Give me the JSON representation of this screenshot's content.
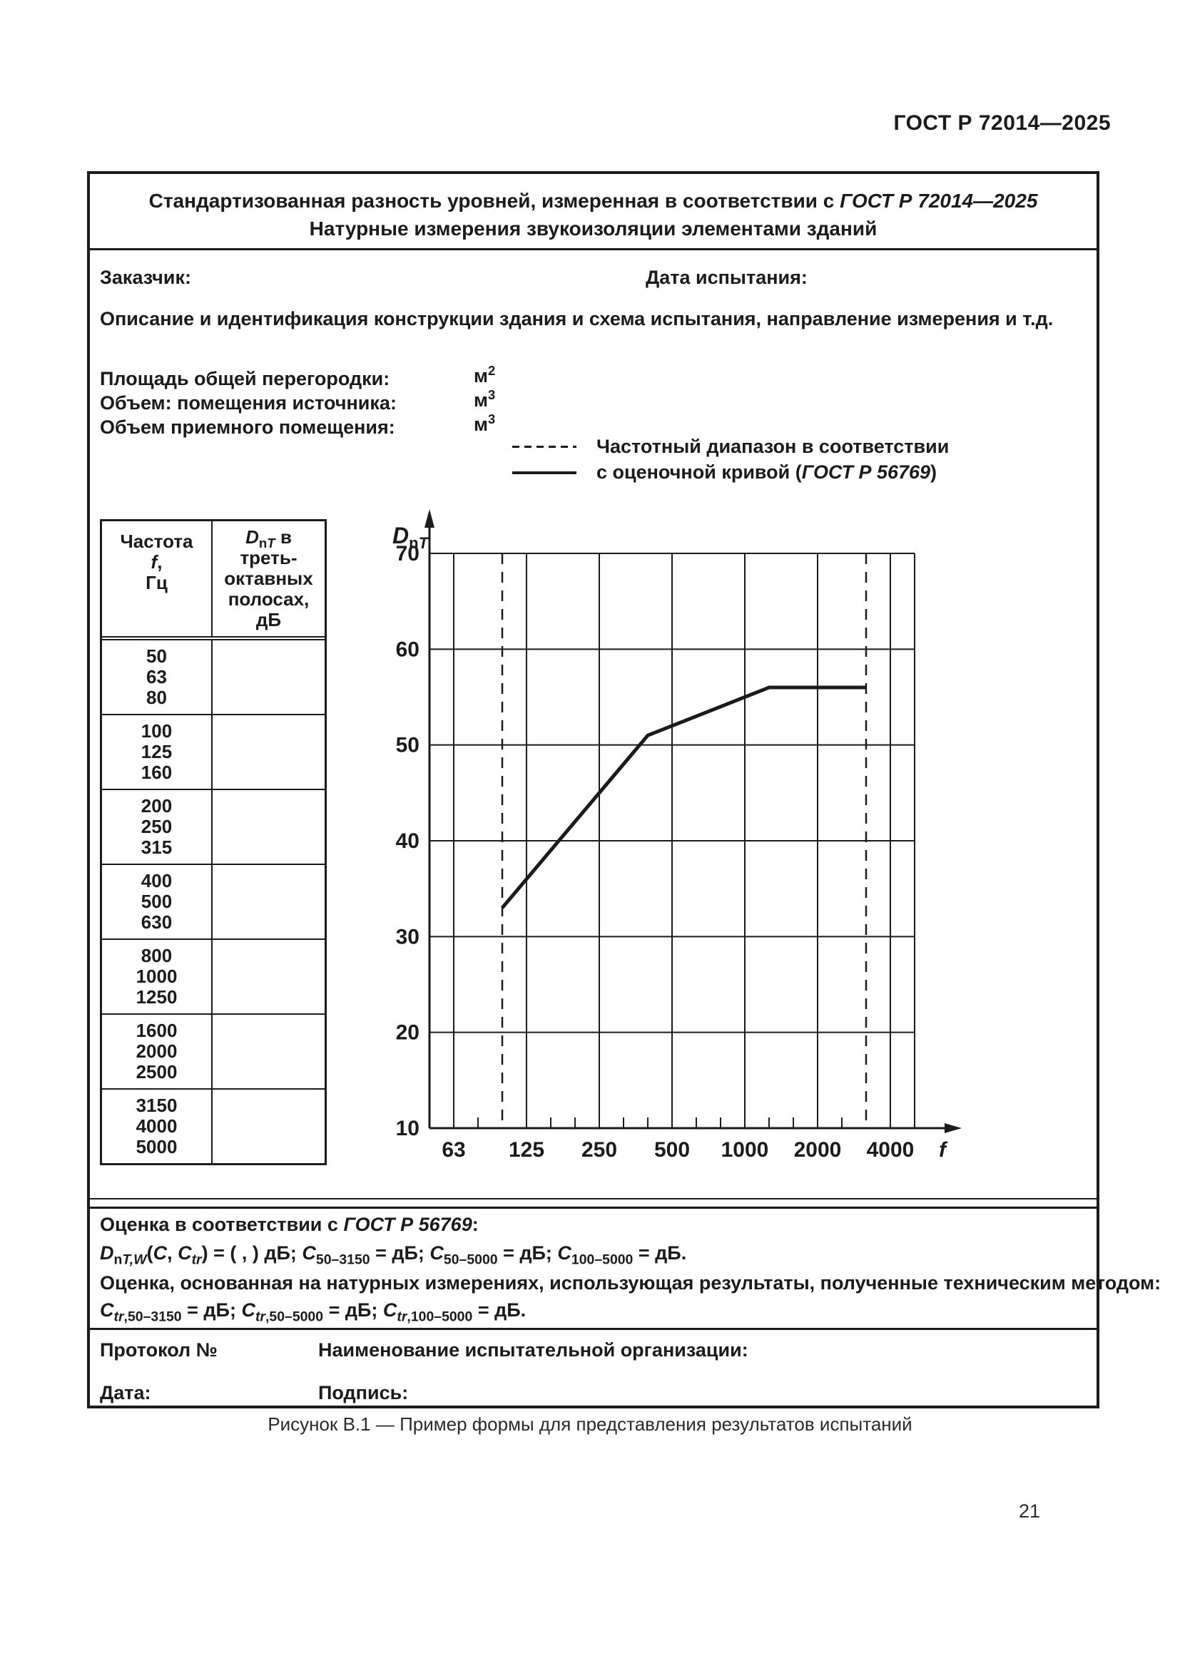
{
  "page": {
    "header": "ГОСТ Р 72014—2025",
    "caption": "Рисунок В.1 — Пример формы для представления результатов испытаний",
    "page_number": "21"
  },
  "form": {
    "title": {
      "line1": [
        {
          "t": "Стандартизованная разность уровней, измеренная в соответствии с "
        },
        {
          "t": "ГОСТ Р 72014—2025",
          "i": 1
        }
      ],
      "line2": "Натурные измерения звукоизоляции элементами зданий"
    },
    "fields": {
      "customer": "Заказчик:",
      "test_date": "Дата испытания:",
      "description": "Описание и идентификация конструкции здания и схема испытания, направление измерения и т.д.",
      "area_label": "Площадь общей перегородки:",
      "area_unit": [
        {
          "t": "м"
        },
        {
          "t": "2",
          "sup": 1
        }
      ],
      "volume_source_label": "Объем: помещения источника:",
      "volume_source_unit": [
        {
          "t": "м"
        },
        {
          "t": "3",
          "sup": 1
        }
      ],
      "volume_receiving_label": "Объем приемного помещения:",
      "volume_receiving_unit": [
        {
          "t": "м"
        },
        {
          "t": "3",
          "sup": 1
        }
      ]
    },
    "table": {
      "header_col1": [
        [
          {
            "t": "Частота"
          }
        ],
        [
          {
            "t": "f",
            "i": 1
          },
          {
            "t": ","
          }
        ],
        [
          {
            "t": "Гц"
          }
        ]
      ],
      "header_col2": [
        {
          "t": "D",
          "i": 1
        },
        {
          "t": "n",
          "sub": 1
        },
        {
          "t": "T",
          "sub": 1,
          "i": 1
        },
        {
          "t": " в треть-октавных полосах, дБ"
        }
      ],
      "groups": [
        [
          "50",
          "63",
          "80"
        ],
        [
          "100",
          "125",
          "160"
        ],
        [
          "200",
          "250",
          "315"
        ],
        [
          "400",
          "500",
          "630"
        ],
        [
          "800",
          "1000",
          "1250"
        ],
        [
          "1600",
          "2000",
          "2500"
        ],
        [
          "3150",
          "4000",
          "5000"
        ]
      ]
    },
    "evaluation": {
      "line1": [
        {
          "t": "Оценка в соответствии с "
        },
        {
          "t": "ГОСТ Р 56769",
          "i": 1
        },
        {
          "t": ":"
        }
      ],
      "line2": [
        {
          "t": "D",
          "i": 1
        },
        {
          "t": "n",
          "sub": 1
        },
        {
          "t": "T,W",
          "sub": 1,
          "i": 1
        },
        {
          "t": "("
        },
        {
          "t": "C",
          "i": 1
        },
        {
          "t": ", "
        },
        {
          "t": "C",
          "i": 1
        },
        {
          "t": "tr",
          "sub": 1,
          "i": 1
        },
        {
          "t": ") = ( , ) дБ;  "
        },
        {
          "t": "C",
          "i": 1
        },
        {
          "t": "50–3150",
          "sub": 1
        },
        {
          "t": " = дБ;  "
        },
        {
          "t": "C",
          "i": 1
        },
        {
          "t": "50–5000",
          "sub": 1
        },
        {
          "t": " = дБ;  "
        },
        {
          "t": "C",
          "i": 1
        },
        {
          "t": "100–5000",
          "sub": 1
        },
        {
          "t": " = дБ."
        }
      ],
      "line3": [
        {
          "t": "Оценка, основанная на натурных измерениях, использующая результаты, полученные техническим методом:"
        }
      ],
      "line4": [
        {
          "t": "C",
          "i": 1
        },
        {
          "t": "tr",
          "sub": 1,
          "i": 1
        },
        {
          "t": ",50–3150",
          "sub": 1
        },
        {
          "t": " = дБ;  "
        },
        {
          "t": "C",
          "i": 1
        },
        {
          "t": "tr",
          "sub": 1,
          "i": 1
        },
        {
          "t": ",50–5000",
          "sub": 1
        },
        {
          "t": " = дБ;  "
        },
        {
          "t": "C",
          "i": 1
        },
        {
          "t": "tr",
          "sub": 1,
          "i": 1
        },
        {
          "t": ",100–5000",
          "sub": 1
        },
        {
          "t": " = дБ."
        }
      ]
    },
    "protocol": {
      "number_label": "Протокол №",
      "org_label": "Наименование испытательной организации:",
      "date_label": "Дата:",
      "signature_label": "Подпись:"
    }
  },
  "chart_data": {
    "type": "line",
    "title": "",
    "xlabel": "f",
    "y_label_segments": [
      {
        "t": "D",
        "i": 1
      },
      {
        "t": "n",
        "sub": 1
      },
      {
        "t": "T",
        "sub": 1,
        "i": 1
      }
    ],
    "x_scale": "log-third-octave",
    "bands": [
      50,
      63,
      80,
      100,
      125,
      160,
      200,
      250,
      315,
      400,
      500,
      630,
      800,
      1000,
      1250,
      1600,
      2000,
      2500,
      3150,
      4000,
      5000
    ],
    "octave_tick_labels": [
      63,
      125,
      250,
      500,
      1000,
      2000,
      4000
    ],
    "y_ticks": [
      70,
      60,
      50,
      40,
      30,
      20,
      10
    ],
    "ylim": [
      10,
      70
    ],
    "xlim_bands": [
      50,
      5000
    ],
    "grid": "on",
    "dashed_frequency_limits": [
      100,
      3150
    ],
    "series": [
      {
        "name": "оценочная кривая (ГОСТ Р 56769)",
        "style": "solid",
        "points": [
          [
            100,
            33
          ],
          [
            400,
            51
          ],
          [
            1250,
            56
          ],
          [
            3150,
            56
          ]
        ]
      }
    ],
    "legend": [
      {
        "symbol": "dashed",
        "label_segments": [
          {
            "t": "Частотный диапазон в соответствии"
          }
        ]
      },
      {
        "symbol": "solid",
        "label_segments": [
          {
            "t": "с оценочной кривой ("
          },
          {
            "t": "ГОСТ Р 56769",
            "i": 1
          },
          {
            "t": ")"
          }
        ]
      }
    ]
  }
}
